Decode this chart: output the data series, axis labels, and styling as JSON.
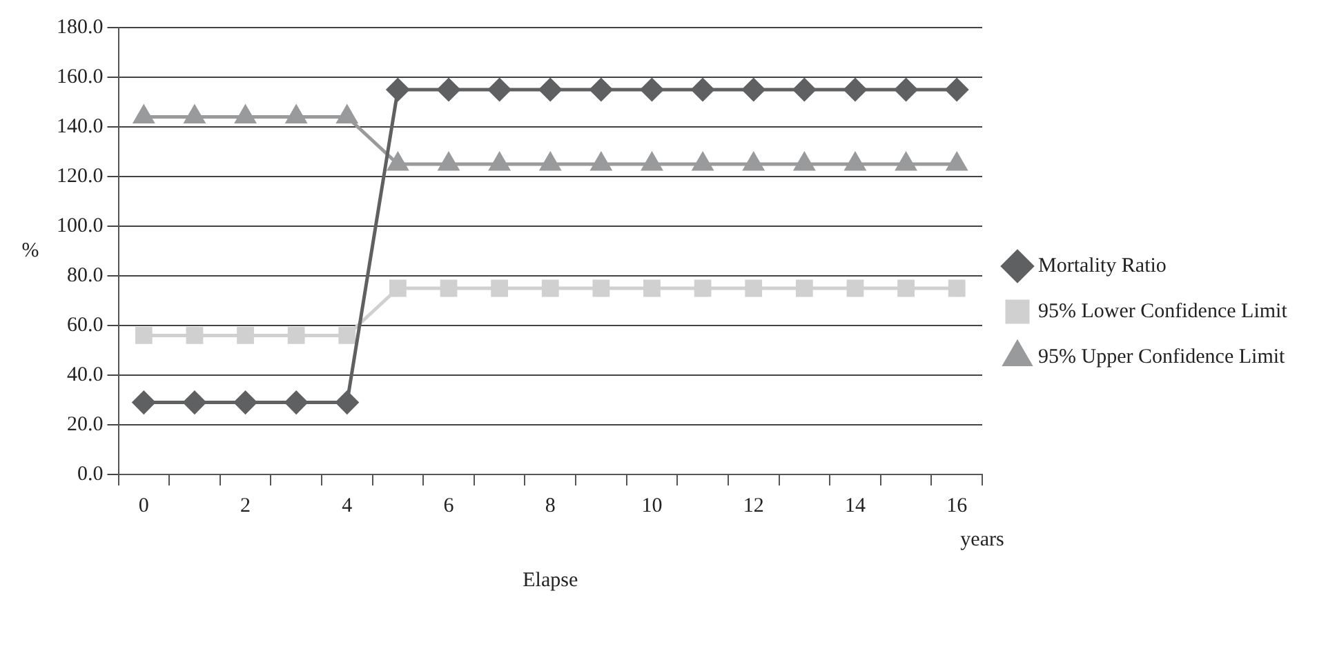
{
  "chart_data": {
    "type": "line",
    "xlabel": "Elapse",
    "ylabel": "%",
    "categories": [
      "0",
      null,
      "2",
      null,
      "4",
      null,
      "6",
      null,
      "8",
      null,
      "10",
      null,
      "12",
      null,
      "14",
      null,
      "16"
    ],
    "series": [
      {
        "name": "Mortality Ratio",
        "color": "#5f6062",
        "marker": "diamond",
        "values": [
          29,
          29,
          29,
          29,
          29,
          155,
          155,
          155,
          155,
          155,
          155,
          155,
          155,
          155,
          155,
          155,
          155
        ]
      },
      {
        "name": "95% Lower Confidence Limit",
        "color": "#d0d0d0",
        "marker": "square",
        "values": [
          56,
          56,
          56,
          56,
          56,
          75,
          75,
          75,
          75,
          75,
          75,
          75,
          75,
          75,
          75,
          75,
          75
        ]
      },
      {
        "name": "95% Upper Confidence Limit",
        "color": "#999a9c",
        "marker": "triangle",
        "values": [
          144,
          144,
          144,
          144,
          144,
          125,
          125,
          125,
          125,
          125,
          125,
          125,
          125,
          125,
          125,
          125,
          125
        ]
      }
    ],
    "ylim": [
      0,
      180
    ],
    "yticks": [
      {
        "value": 0,
        "label": "0.0"
      },
      {
        "value": 20,
        "label": "20.0"
      },
      {
        "value": 40,
        "label": "40.0"
      },
      {
        "value": 60,
        "label": "60.0"
      },
      {
        "value": 80,
        "label": "80.0"
      },
      {
        "value": 100,
        "label": "100.0"
      },
      {
        "value": 120,
        "label": "120.0"
      },
      {
        "value": 140,
        "label": "140.0"
      },
      {
        "value": 160,
        "label": "160.0"
      },
      {
        "value": 180,
        "label": "180.0"
      }
    ],
    "annotations": [
      "years"
    ],
    "grid": "y",
    "legend": "right",
    "line_style": "solid"
  }
}
